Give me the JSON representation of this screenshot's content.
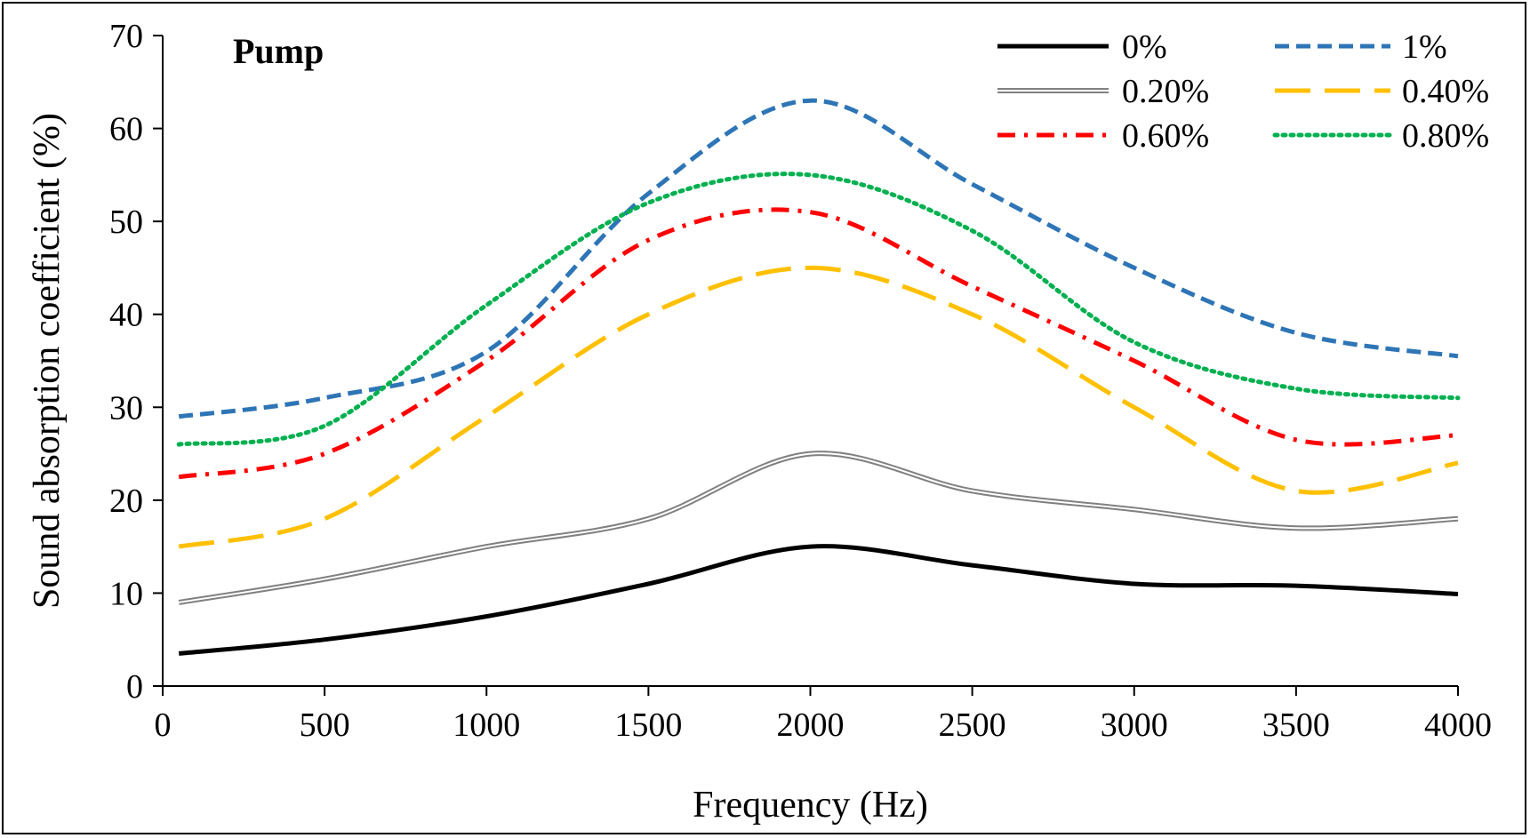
{
  "chart_data": {
    "type": "line",
    "title": "Pump",
    "xlabel": "Frequency (Hz)",
    "ylabel": "Sound absorption coefficient (%)",
    "xlim": [
      0,
      4000
    ],
    "ylim": [
      0,
      70
    ],
    "xticks": [
      "0",
      "500",
      "1000",
      "1500",
      "2000",
      "2500",
      "3000",
      "3500",
      "4000"
    ],
    "yticks": [
      "0",
      "10",
      "20",
      "30",
      "40",
      "50",
      "60",
      "70"
    ],
    "grid": false,
    "legend_position": "top-right",
    "x": [
      50,
      500,
      1000,
      1500,
      2000,
      2500,
      3000,
      3500,
      4000
    ],
    "series": [
      {
        "name": "0%",
        "values": [
          3.5,
          5,
          7.5,
          11,
          15,
          13,
          11,
          10.8,
          9.9
        ],
        "color": "#000000",
        "style": "solid"
      },
      {
        "name": "1%",
        "values": [
          29,
          31,
          36,
          53,
          63,
          54,
          45,
          38,
          35.5
        ],
        "color": "#2E75B6",
        "style": "dash"
      },
      {
        "name": "0.20%",
        "values": [
          9,
          11.5,
          15,
          18,
          25,
          21,
          19,
          17,
          18
        ],
        "color": "#808080",
        "style": "double"
      },
      {
        "name": "0.40%",
        "values": [
          15,
          18,
          29,
          40,
          45,
          40,
          30,
          21,
          24
        ],
        "color": "#FFC000",
        "style": "longdash"
      },
      {
        "name": "0.60%",
        "values": [
          22.5,
          25,
          35,
          48,
          51,
          43,
          35,
          26.5,
          27
        ],
        "color": "#FF0000",
        "style": "dashdot"
      },
      {
        "name": "0.80%",
        "values": [
          26,
          28,
          41,
          52,
          55,
          49,
          37,
          32,
          31
        ],
        "color": "#00B050",
        "style": "dot"
      }
    ]
  }
}
